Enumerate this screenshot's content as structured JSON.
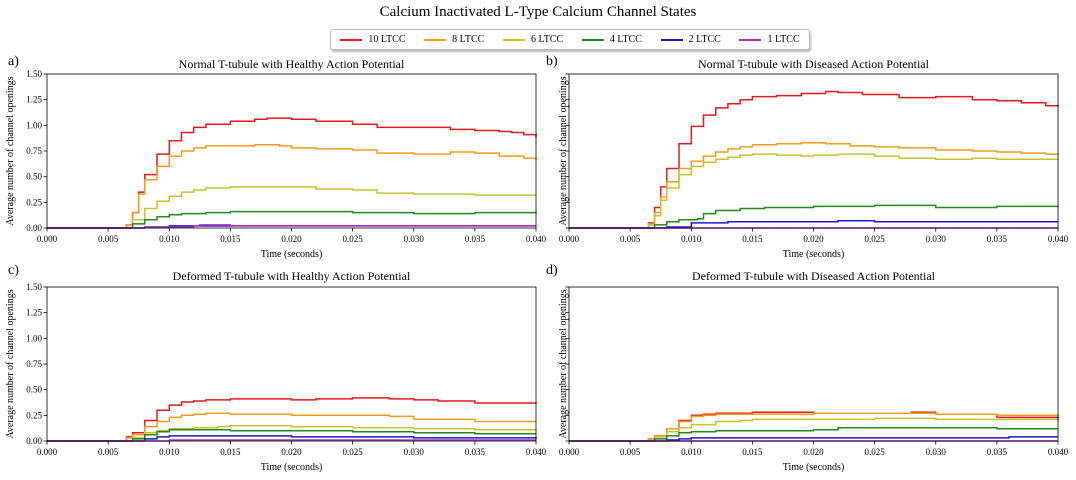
{
  "figure": {
    "title": "Calcium Inactivated L-Type Calcium Channel States"
  },
  "legend": [
    {
      "label": "10 LTCC",
      "color": "#e31a1c"
    },
    {
      "label": "8 LTCC",
      "color": "#f39c1b"
    },
    {
      "label": "6 LTCC",
      "color": "#c8c22a"
    },
    {
      "label": "4 LTCC",
      "color": "#1f8a1f"
    },
    {
      "label": "2 LTCC",
      "color": "#1a1acc"
    },
    {
      "label": "1 LTCC",
      "color": "#b92bbf"
    }
  ],
  "axes": {
    "xlabel": "Time (seconds)",
    "ylabel": "Average number of channel openings",
    "xticks": [
      "0.000",
      "0.005",
      "0.010",
      "0.015",
      "0.020",
      "0.025",
      "0.030",
      "0.035",
      "0.040"
    ],
    "yticks": [
      "0.00",
      "0.25",
      "0.50",
      "0.75",
      "1.00",
      "1.25",
      "1.50"
    ]
  },
  "chart_data": [
    {
      "panel": "a)",
      "title": "Normal T-tubule with Healthy Action Potential",
      "type": "line",
      "xlabel": "Time (seconds)",
      "ylabel": "Average number of channel openings",
      "xlim": [
        0,
        0.04
      ],
      "ylim": [
        0,
        1.5
      ],
      "show_y_tick_labels": true,
      "series": [
        {
          "name": "10 LTCC",
          "x": [
            0,
            0.006,
            0.0065,
            0.007,
            0.0075,
            0.008,
            0.009,
            0.01,
            0.011,
            0.012,
            0.013,
            0.015,
            0.017,
            0.018,
            0.019,
            0.02,
            0.022,
            0.025,
            0.027,
            0.03,
            0.033,
            0.035,
            0.037,
            0.038,
            0.039,
            0.04
          ],
          "y": [
            0,
            0,
            0.03,
            0.15,
            0.35,
            0.52,
            0.72,
            0.85,
            0.93,
            0.98,
            1.01,
            1.04,
            1.06,
            1.07,
            1.07,
            1.06,
            1.04,
            1.01,
            0.98,
            0.98,
            0.96,
            0.95,
            0.94,
            0.93,
            0.91,
            0.88
          ]
        },
        {
          "name": "8 LTCC",
          "x": [
            0,
            0.006,
            0.0065,
            0.007,
            0.0075,
            0.008,
            0.009,
            0.01,
            0.011,
            0.012,
            0.013,
            0.015,
            0.017,
            0.019,
            0.02,
            0.022,
            0.025,
            0.027,
            0.03,
            0.033,
            0.035,
            0.037,
            0.039,
            0.04
          ],
          "y": [
            0,
            0,
            0.03,
            0.15,
            0.33,
            0.47,
            0.6,
            0.7,
            0.75,
            0.78,
            0.8,
            0.8,
            0.81,
            0.8,
            0.78,
            0.77,
            0.76,
            0.73,
            0.72,
            0.74,
            0.73,
            0.7,
            0.68,
            0.66
          ]
        },
        {
          "name": "6 LTCC",
          "x": [
            0,
            0.006,
            0.007,
            0.008,
            0.009,
            0.01,
            0.011,
            0.012,
            0.013,
            0.015,
            0.017,
            0.02,
            0.022,
            0.025,
            0.027,
            0.03,
            0.035,
            0.04
          ],
          "y": [
            0,
            0,
            0.08,
            0.19,
            0.26,
            0.31,
            0.35,
            0.37,
            0.39,
            0.4,
            0.4,
            0.4,
            0.38,
            0.37,
            0.34,
            0.33,
            0.32,
            0.32
          ]
        },
        {
          "name": "4 LTCC",
          "x": [
            0,
            0.006,
            0.007,
            0.008,
            0.009,
            0.01,
            0.011,
            0.013,
            0.015,
            0.02,
            0.025,
            0.03,
            0.035,
            0.04
          ],
          "y": [
            0,
            0,
            0.04,
            0.08,
            0.11,
            0.13,
            0.14,
            0.15,
            0.16,
            0.16,
            0.15,
            0.14,
            0.15,
            0.16
          ]
        },
        {
          "name": "2 LTCC",
          "x": [
            0,
            0.007,
            0.008,
            0.01,
            0.012,
            0.015,
            0.02,
            0.025,
            0.03,
            0.035,
            0.04
          ],
          "y": [
            0,
            0,
            0.01,
            0.02,
            0.02,
            0.02,
            0.02,
            0.02,
            0.02,
            0.02,
            0.02
          ]
        },
        {
          "name": "1 LTCC",
          "x": [
            0,
            0.007,
            0.008,
            0.01,
            0.012,
            0.0125,
            0.013,
            0.015,
            0.02,
            0.025,
            0.03,
            0.035,
            0.04
          ],
          "y": [
            0,
            0,
            0.005,
            0.01,
            0.02,
            0.03,
            0.03,
            0.02,
            0.02,
            0.02,
            0.02,
            0.02,
            0.02
          ]
        }
      ]
    },
    {
      "panel": "b)",
      "title": "Normal T-tubule with Diseased Action Potential",
      "type": "line",
      "xlabel": "Time (seconds)",
      "ylabel": "Average number of channel openings",
      "xlim": [
        0,
        0.04
      ],
      "ylim": [
        0,
        1.5
      ],
      "show_y_tick_labels": false,
      "series": [
        {
          "name": "10 LTCC",
          "x": [
            0,
            0.006,
            0.0065,
            0.007,
            0.0075,
            0.008,
            0.009,
            0.01,
            0.011,
            0.012,
            0.013,
            0.014,
            0.015,
            0.017,
            0.019,
            0.021,
            0.022,
            0.024,
            0.027,
            0.03,
            0.033,
            0.035,
            0.037,
            0.039,
            0.04
          ],
          "y": [
            0,
            0,
            0.05,
            0.2,
            0.4,
            0.58,
            0.82,
            0.99,
            1.1,
            1.17,
            1.21,
            1.25,
            1.28,
            1.29,
            1.31,
            1.33,
            1.32,
            1.3,
            1.27,
            1.28,
            1.25,
            1.24,
            1.22,
            1.19,
            1.18
          ]
        },
        {
          "name": "8 LTCC",
          "x": [
            0,
            0.006,
            0.0065,
            0.007,
            0.0075,
            0.008,
            0.009,
            0.01,
            0.011,
            0.012,
            0.013,
            0.014,
            0.015,
            0.017,
            0.019,
            0.021,
            0.023,
            0.025,
            0.027,
            0.03,
            0.033,
            0.035,
            0.037,
            0.039,
            0.04
          ],
          "y": [
            0,
            0,
            0.04,
            0.15,
            0.3,
            0.45,
            0.58,
            0.65,
            0.7,
            0.74,
            0.77,
            0.79,
            0.81,
            0.82,
            0.83,
            0.82,
            0.8,
            0.79,
            0.78,
            0.76,
            0.75,
            0.74,
            0.73,
            0.72,
            0.71
          ]
        },
        {
          "name": "6 LTCC",
          "x": [
            0,
            0.006,
            0.0065,
            0.007,
            0.0075,
            0.008,
            0.009,
            0.01,
            0.011,
            0.012,
            0.013,
            0.014,
            0.015,
            0.017,
            0.019,
            0.02,
            0.022,
            0.025,
            0.027,
            0.03,
            0.033,
            0.035,
            0.037,
            0.04
          ],
          "y": [
            0,
            0,
            0.03,
            0.12,
            0.27,
            0.39,
            0.52,
            0.6,
            0.64,
            0.67,
            0.69,
            0.71,
            0.72,
            0.71,
            0.7,
            0.71,
            0.72,
            0.7,
            0.68,
            0.67,
            0.68,
            0.67,
            0.67,
            0.67
          ]
        },
        {
          "name": "4 LTCC",
          "x": [
            0,
            0.006,
            0.007,
            0.008,
            0.009,
            0.0105,
            0.011,
            0.012,
            0.014,
            0.016,
            0.02,
            0.025,
            0.03,
            0.035,
            0.04
          ],
          "y": [
            0,
            0,
            0.03,
            0.06,
            0.08,
            0.09,
            0.14,
            0.17,
            0.19,
            0.2,
            0.21,
            0.22,
            0.2,
            0.21,
            0.2
          ]
        },
        {
          "name": "2 LTCC",
          "x": [
            0,
            0.007,
            0.008,
            0.01,
            0.013,
            0.015,
            0.02,
            0.022,
            0.025,
            0.03,
            0.035,
            0.04
          ],
          "y": [
            0,
            0,
            0.01,
            0.05,
            0.06,
            0.06,
            0.06,
            0.07,
            0.06,
            0.06,
            0.06,
            0.06
          ]
        },
        {
          "name": "1 LTCC",
          "x": [
            0,
            0.04
          ],
          "y": [
            0,
            0
          ]
        }
      ]
    },
    {
      "panel": "c)",
      "title": "Deformed T-tubule with Healthy Action Potential",
      "type": "line",
      "xlabel": "Time (seconds)",
      "ylabel": "Average number of channel openings",
      "xlim": [
        0,
        0.04
      ],
      "ylim": [
        0,
        1.5
      ],
      "show_y_tick_labels": true,
      "series": [
        {
          "name": "10 LTCC",
          "x": [
            0,
            0.006,
            0.0065,
            0.007,
            0.008,
            0.009,
            0.01,
            0.011,
            0.012,
            0.013,
            0.015,
            0.02,
            0.022,
            0.025,
            0.028,
            0.03,
            0.032,
            0.035,
            0.038,
            0.04
          ],
          "y": [
            0,
            0,
            0.04,
            0.08,
            0.2,
            0.3,
            0.35,
            0.38,
            0.39,
            0.4,
            0.41,
            0.4,
            0.41,
            0.42,
            0.41,
            0.4,
            0.39,
            0.37,
            0.37,
            0.36
          ]
        },
        {
          "name": "8 LTCC",
          "x": [
            0,
            0.006,
            0.0065,
            0.007,
            0.008,
            0.009,
            0.01,
            0.011,
            0.012,
            0.013,
            0.015,
            0.02,
            0.025,
            0.028,
            0.03,
            0.035,
            0.04
          ],
          "y": [
            0,
            0,
            0.03,
            0.06,
            0.14,
            0.19,
            0.23,
            0.25,
            0.26,
            0.27,
            0.26,
            0.25,
            0.25,
            0.24,
            0.21,
            0.19,
            0.19
          ]
        },
        {
          "name": "6 LTCC",
          "x": [
            0,
            0.0065,
            0.007,
            0.008,
            0.009,
            0.01,
            0.012,
            0.014,
            0.015,
            0.02,
            0.025,
            0.03,
            0.035,
            0.04
          ],
          "y": [
            0,
            0,
            0.03,
            0.08,
            0.1,
            0.12,
            0.13,
            0.14,
            0.15,
            0.14,
            0.13,
            0.12,
            0.11,
            0.1
          ]
        },
        {
          "name": "4 LTCC",
          "x": [
            0,
            0.0065,
            0.007,
            0.008,
            0.009,
            0.01,
            0.012,
            0.015,
            0.02,
            0.025,
            0.03,
            0.035,
            0.04
          ],
          "y": [
            0,
            0,
            0.02,
            0.06,
            0.09,
            0.11,
            0.11,
            0.1,
            0.1,
            0.09,
            0.08,
            0.07,
            0.07
          ]
        },
        {
          "name": "2 LTCC",
          "x": [
            0,
            0.007,
            0.008,
            0.009,
            0.01,
            0.015,
            0.02,
            0.025,
            0.03,
            0.035,
            0.04
          ],
          "y": [
            0,
            0,
            0.02,
            0.04,
            0.05,
            0.05,
            0.04,
            0.04,
            0.03,
            0.03,
            0.02
          ]
        },
        {
          "name": "1 LTCC",
          "x": [
            0,
            0.007,
            0.01,
            0.015,
            0.02,
            0.025,
            0.03,
            0.035,
            0.04
          ],
          "y": [
            0,
            0,
            0.01,
            0.01,
            0.01,
            0.01,
            0.01,
            0.01,
            0.01
          ]
        }
      ]
    },
    {
      "panel": "d)",
      "title": "Deformed T-tubule with Diseased Action Potential",
      "type": "line",
      "xlabel": "Time (seconds)",
      "ylabel": "Average number of channel openings",
      "xlim": [
        0,
        0.04
      ],
      "ylim": [
        0,
        1.5
      ],
      "show_y_tick_labels": false,
      "series": [
        {
          "name": "10 LTCC",
          "x": [
            0,
            0.006,
            0.0065,
            0.007,
            0.008,
            0.009,
            0.01,
            0.011,
            0.012,
            0.014,
            0.015,
            0.02,
            0.025,
            0.028,
            0.03,
            0.035,
            0.04
          ],
          "y": [
            0,
            0,
            0.02,
            0.05,
            0.12,
            0.2,
            0.25,
            0.26,
            0.27,
            0.27,
            0.28,
            0.27,
            0.27,
            0.28,
            0.26,
            0.23,
            0.2
          ]
        },
        {
          "name": "8 LTCC",
          "x": [
            0,
            0.006,
            0.0065,
            0.007,
            0.008,
            0.009,
            0.01,
            0.011,
            0.012,
            0.014,
            0.015,
            0.02,
            0.025,
            0.03,
            0.035,
            0.04
          ],
          "y": [
            0,
            0,
            0.02,
            0.05,
            0.12,
            0.19,
            0.24,
            0.25,
            0.26,
            0.26,
            0.26,
            0.27,
            0.27,
            0.26,
            0.25,
            0.24
          ]
        },
        {
          "name": "6 LTCC",
          "x": [
            0,
            0.006,
            0.007,
            0.008,
            0.009,
            0.01,
            0.012,
            0.014,
            0.015,
            0.02,
            0.025,
            0.03,
            0.035,
            0.04
          ],
          "y": [
            0,
            0,
            0.04,
            0.09,
            0.13,
            0.16,
            0.19,
            0.2,
            0.21,
            0.21,
            0.22,
            0.21,
            0.21,
            0.22
          ]
        },
        {
          "name": "4 LTCC",
          "x": [
            0,
            0.0065,
            0.007,
            0.008,
            0.009,
            0.01,
            0.012,
            0.015,
            0.02,
            0.022,
            0.025,
            0.03,
            0.035,
            0.04
          ],
          "y": [
            0,
            0,
            0.02,
            0.05,
            0.08,
            0.09,
            0.1,
            0.1,
            0.11,
            0.13,
            0.13,
            0.13,
            0.12,
            0.12
          ]
        },
        {
          "name": "2 LTCC",
          "x": [
            0,
            0.007,
            0.008,
            0.009,
            0.01,
            0.015,
            0.02,
            0.025,
            0.03,
            0.035,
            0.036,
            0.04
          ],
          "y": [
            0,
            0,
            0.01,
            0.02,
            0.03,
            0.03,
            0.03,
            0.03,
            0.03,
            0.03,
            0.04,
            0.04
          ]
        },
        {
          "name": "1 LTCC",
          "x": [
            0,
            0.04
          ],
          "y": [
            0,
            0
          ]
        }
      ]
    }
  ]
}
